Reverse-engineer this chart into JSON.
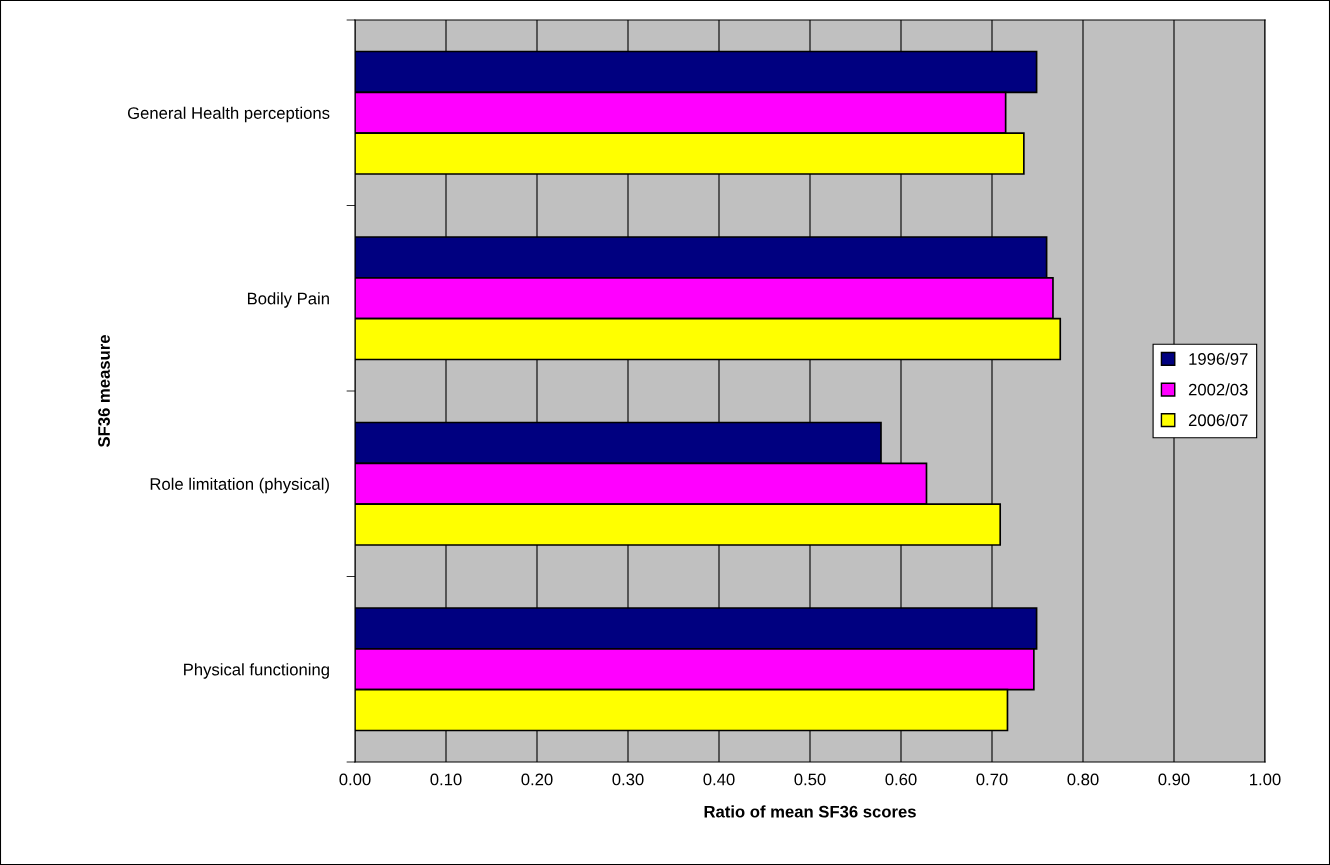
{
  "chart_data": {
    "type": "bar",
    "orientation": "horizontal",
    "xlabel": "Ratio of mean SF36 scores",
    "ylabel": "SF36 measure",
    "categories": [
      "General Health perceptions",
      "Bodily Pain",
      "Role limitation (physical)",
      "Physical functioning"
    ],
    "series": [
      {
        "name": "1996/97",
        "color": "#000080",
        "values": [
          0.749,
          0.76,
          0.578,
          0.749
        ]
      },
      {
        "name": "2002/03",
        "color": "#ff00ff",
        "values": [
          0.715,
          0.767,
          0.628,
          0.746
        ]
      },
      {
        "name": "2006/07",
        "color": "#ffff00",
        "values": [
          0.735,
          0.775,
          0.709,
          0.717
        ]
      }
    ],
    "xlim": [
      0,
      1
    ],
    "xticks": [
      {
        "value": 0,
        "label": "0.00"
      },
      {
        "value": 0.1,
        "label": "0.10"
      },
      {
        "value": 0.2,
        "label": "0.20"
      },
      {
        "value": 0.3,
        "label": "0.30"
      },
      {
        "value": 0.4,
        "label": "0.40"
      },
      {
        "value": 0.5,
        "label": "0.50"
      },
      {
        "value": 0.6,
        "label": "0.60"
      },
      {
        "value": 0.7,
        "label": "0.70"
      },
      {
        "value": 0.8,
        "label": "0.80"
      },
      {
        "value": 0.9,
        "label": "0.90"
      },
      {
        "value": 1,
        "label": "1.00"
      }
    ],
    "grid": "x",
    "legend": "right"
  }
}
